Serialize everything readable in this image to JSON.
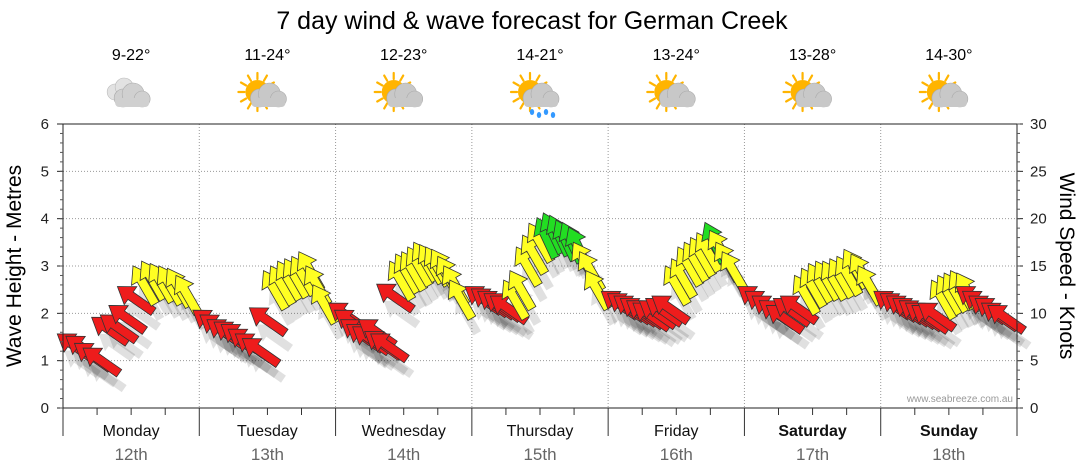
{
  "chart_data": {
    "type": "scatter",
    "title": "7 day wind & wave forecast for German Creek",
    "y_left_label": "Wave Height - Metres",
    "y_right_label": "Wind Speed - Knots",
    "y_left_range": [
      0,
      6
    ],
    "y_right_range": [
      0,
      30
    ],
    "y_left_ticks": [
      "0",
      "1",
      "2",
      "3",
      "4",
      "5",
      "6"
    ],
    "y_right_ticks": [
      "0",
      "5",
      "10",
      "15",
      "20",
      "25",
      "30"
    ],
    "grid": true,
    "watermark": "www.seabreeze.com.au",
    "colors": {
      "red": "#ee1c1c",
      "yellow": "#ffff22",
      "green": "#22dd22",
      "cloud": "#c8c8c8",
      "sun": "#ffb400",
      "rain": "#3399ff"
    },
    "days": [
      {
        "day": "Monday",
        "date": "12th",
        "temp": "9-22°",
        "icon": "cloud-icon",
        "weekend": false,
        "points": [
          [
            1.3,
            "red"
          ],
          [
            1.25,
            "red"
          ],
          [
            1.1,
            "red"
          ],
          [
            1.0,
            "red"
          ],
          [
            1.65,
            "red"
          ],
          [
            1.7,
            "red"
          ],
          [
            1.9,
            "red"
          ],
          [
            2.3,
            "red"
          ],
          [
            2.6,
            "yellow"
          ],
          [
            2.7,
            "yellow"
          ],
          [
            2.65,
            "yellow"
          ],
          [
            2.6,
            "yellow"
          ],
          [
            2.55,
            "yellow"
          ],
          [
            2.4,
            "yellow"
          ]
        ]
      },
      {
        "day": "Tuesday",
        "date": "13th",
        "temp": "11-24°",
        "icon": "partly-cloudy-icon",
        "weekend": false,
        "points": [
          [
            1.8,
            "red"
          ],
          [
            1.7,
            "red"
          ],
          [
            1.6,
            "red"
          ],
          [
            1.55,
            "red"
          ],
          [
            1.5,
            "red"
          ],
          [
            1.4,
            "red"
          ],
          [
            1.3,
            "red"
          ],
          [
            1.2,
            "red"
          ],
          [
            1.85,
            "red"
          ],
          [
            2.5,
            "yellow"
          ],
          [
            2.6,
            "yellow"
          ],
          [
            2.7,
            "yellow"
          ],
          [
            2.75,
            "yellow"
          ],
          [
            2.8,
            "yellow"
          ],
          [
            2.9,
            "yellow"
          ],
          [
            2.6,
            "yellow"
          ],
          [
            2.2,
            "yellow"
          ]
        ]
      },
      {
        "day": "Wednesday",
        "date": "14th",
        "temp": "12-23°",
        "icon": "partly-cloudy-icon",
        "weekend": false,
        "points": [
          [
            1.95,
            "red"
          ],
          [
            1.8,
            "red"
          ],
          [
            1.6,
            "red"
          ],
          [
            1.5,
            "red"
          ],
          [
            1.45,
            "red"
          ],
          [
            1.6,
            "red"
          ],
          [
            1.35,
            "red"
          ],
          [
            1.3,
            "red"
          ],
          [
            2.35,
            "red"
          ],
          [
            2.7,
            "yellow"
          ],
          [
            2.85,
            "yellow"
          ],
          [
            2.9,
            "yellow"
          ],
          [
            3.0,
            "yellow"
          ],
          [
            3.1,
            "yellow"
          ],
          [
            3.05,
            "yellow"
          ],
          [
            3.0,
            "yellow"
          ],
          [
            2.95,
            "yellow"
          ],
          [
            2.8,
            "yellow"
          ],
          [
            2.6,
            "yellow"
          ],
          [
            2.3,
            "yellow"
          ]
        ]
      },
      {
        "day": "Thursday",
        "date": "15th",
        "temp": "14-21°",
        "icon": "rain-icon",
        "weekend": false,
        "points": [
          [
            2.3,
            "red"
          ],
          [
            2.25,
            "red"
          ],
          [
            2.2,
            "red"
          ],
          [
            2.15,
            "red"
          ],
          [
            2.1,
            "red"
          ],
          [
            2.3,
            "yellow"
          ],
          [
            2.5,
            "yellow"
          ],
          [
            3.0,
            "yellow"
          ],
          [
            3.25,
            "yellow"
          ],
          [
            3.5,
            "yellow"
          ],
          [
            3.6,
            "green"
          ],
          [
            3.7,
            "green"
          ],
          [
            3.65,
            "green"
          ],
          [
            3.55,
            "green"
          ],
          [
            3.5,
            "green"
          ],
          [
            3.4,
            "green"
          ],
          [
            3.1,
            "yellow"
          ],
          [
            2.9,
            "yellow"
          ],
          [
            2.5,
            "yellow"
          ]
        ]
      },
      {
        "day": "Friday",
        "date": "16th",
        "temp": "13-24°",
        "icon": "partly-cloudy-icon",
        "weekend": false,
        "points": [
          [
            2.2,
            "red"
          ],
          [
            2.15,
            "red"
          ],
          [
            2.1,
            "red"
          ],
          [
            2.05,
            "red"
          ],
          [
            2.0,
            "red"
          ],
          [
            1.95,
            "red"
          ],
          [
            2.0,
            "red"
          ],
          [
            2.05,
            "red"
          ],
          [
            2.1,
            "red"
          ],
          [
            2.6,
            "yellow"
          ],
          [
            2.75,
            "yellow"
          ],
          [
            3.0,
            "yellow"
          ],
          [
            3.1,
            "yellow"
          ],
          [
            3.2,
            "yellow"
          ],
          [
            3.3,
            "yellow"
          ],
          [
            3.5,
            "green"
          ],
          [
            3.35,
            "yellow"
          ],
          [
            3.1,
            "yellow"
          ],
          [
            2.9,
            "yellow"
          ]
        ]
      },
      {
        "day": "Saturday",
        "date": "17th",
        "temp": "13-28°",
        "icon": "partly-cloudy-icon",
        "weekend": true,
        "points": [
          [
            2.3,
            "red"
          ],
          [
            2.2,
            "red"
          ],
          [
            2.1,
            "red"
          ],
          [
            2.0,
            "red"
          ],
          [
            1.9,
            "red"
          ],
          [
            2.05,
            "red"
          ],
          [
            2.1,
            "red"
          ],
          [
            2.4,
            "yellow"
          ],
          [
            2.55,
            "yellow"
          ],
          [
            2.65,
            "yellow"
          ],
          [
            2.7,
            "yellow"
          ],
          [
            2.7,
            "yellow"
          ],
          [
            2.75,
            "yellow"
          ],
          [
            2.8,
            "yellow"
          ],
          [
            2.95,
            "yellow"
          ],
          [
            2.85,
            "yellow"
          ],
          [
            2.6,
            "yellow"
          ]
        ]
      },
      {
        "day": "Sunday",
        "date": "18th",
        "temp": "14-30°",
        "icon": "partly-cloudy-icon",
        "weekend": true,
        "points": [
          [
            2.2,
            "red"
          ],
          [
            2.15,
            "red"
          ],
          [
            2.1,
            "red"
          ],
          [
            2.05,
            "red"
          ],
          [
            2.0,
            "red"
          ],
          [
            1.95,
            "red"
          ],
          [
            1.9,
            "red"
          ],
          [
            1.95,
            "red"
          ],
          [
            2.3,
            "yellow"
          ],
          [
            2.4,
            "yellow"
          ],
          [
            2.45,
            "yellow"
          ],
          [
            2.5,
            "yellow"
          ],
          [
            2.45,
            "yellow"
          ],
          [
            2.3,
            "red"
          ],
          [
            2.2,
            "red"
          ],
          [
            2.1,
            "red"
          ],
          [
            2.05,
            "red"
          ],
          [
            1.95,
            "red"
          ],
          [
            1.9,
            "red"
          ]
        ]
      }
    ]
  }
}
